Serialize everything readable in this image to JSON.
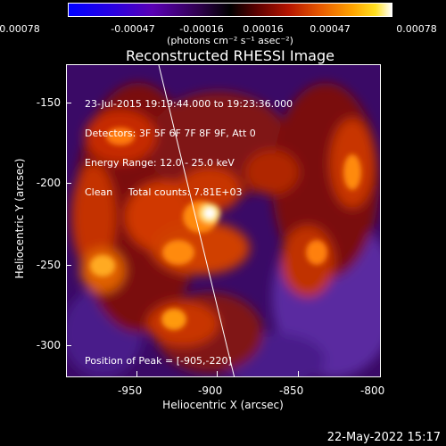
{
  "colorbar": {
    "ticks": [
      "-0.00078",
      "-0.00047",
      "-0.00016",
      "0.00016",
      "0.00047",
      "0.00078"
    ],
    "units": "(photons cm⁻² s⁻¹ asec⁻²)"
  },
  "title": "Reconstructed RHESSI Image",
  "info": {
    "line1": "23-Jul-2015 19:19:44.000 to 19:23:36.000",
    "line2": "Detectors: 3F 5F 6F 7F 8F 9F, Att 0",
    "line3": "Energy Range: 12.0 - 25.0 keV",
    "line4": "Clean     Total counts: 7.81E+03",
    "peak": "Position of Peak = [-905,-220]"
  },
  "axes": {
    "xlabel": "Heliocentric X (arcsec)",
    "ylabel": "Heliocentric Y (arcsec)",
    "xticks": [
      "-950",
      "-900",
      "-850",
      "-800"
    ],
    "yticks": [
      "-150",
      "-200",
      "-250",
      "-300"
    ]
  },
  "timestamp": "22-May-2022 15:17"
}
